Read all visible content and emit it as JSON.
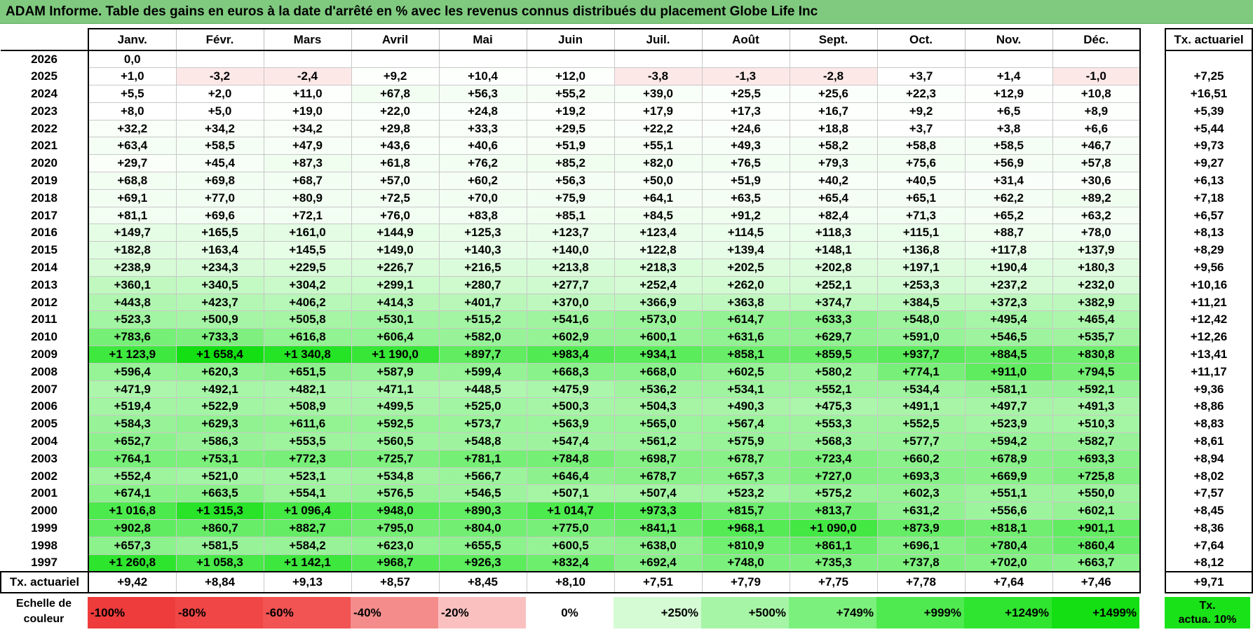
{
  "title": "ADAM Informe. Table des gains en euros à la date d'arrêté en % avec les revenus connus distribués du placement Globe Life Inc",
  "months": [
    "Janv.",
    "Févr.",
    "Mars",
    "Avril",
    "Mai",
    "Juin",
    "Juil.",
    "Août",
    "Sept.",
    "Oct.",
    "Nov.",
    "Déc."
  ],
  "actu_header": "Tx. actuariel",
  "rows": [
    {
      "year": "2026",
      "values": [
        "0,0",
        "",
        "",
        "",
        "",
        "",
        "",
        "",
        "",
        "",
        "",
        ""
      ],
      "actu": ""
    },
    {
      "year": "2025",
      "values": [
        "+1,0",
        "-3,2",
        "-2,4",
        "+9,2",
        "+10,4",
        "+12,0",
        "-3,8",
        "-1,3",
        "-2,8",
        "+3,7",
        "+1,4",
        "-1,0"
      ],
      "actu": "+7,25"
    },
    {
      "year": "2024",
      "values": [
        "+5,5",
        "+2,0",
        "+11,0",
        "+67,8",
        "+56,3",
        "+55,2",
        "+39,0",
        "+25,5",
        "+25,6",
        "+22,3",
        "+12,9",
        "+10,8"
      ],
      "actu": "+16,51"
    },
    {
      "year": "2023",
      "values": [
        "+8,0",
        "+5,0",
        "+19,0",
        "+22,0",
        "+24,8",
        "+19,2",
        "+17,9",
        "+17,3",
        "+16,7",
        "+9,2",
        "+6,5",
        "+8,9"
      ],
      "actu": "+5,39"
    },
    {
      "year": "2022",
      "values": [
        "+32,2",
        "+34,2",
        "+34,2",
        "+29,8",
        "+33,3",
        "+29,5",
        "+22,2",
        "+24,6",
        "+18,8",
        "+3,7",
        "+3,8",
        "+6,6"
      ],
      "actu": "+5,44"
    },
    {
      "year": "2021",
      "values": [
        "+63,4",
        "+58,5",
        "+47,9",
        "+43,6",
        "+40,6",
        "+51,9",
        "+55,1",
        "+49,3",
        "+58,2",
        "+58,8",
        "+58,5",
        "+46,7"
      ],
      "actu": "+9,73"
    },
    {
      "year": "2020",
      "values": [
        "+29,7",
        "+45,4",
        "+87,3",
        "+61,8",
        "+76,2",
        "+85,2",
        "+82,0",
        "+76,5",
        "+79,3",
        "+75,6",
        "+56,9",
        "+57,8"
      ],
      "actu": "+9,27"
    },
    {
      "year": "2019",
      "values": [
        "+68,8",
        "+69,8",
        "+68,7",
        "+57,0",
        "+60,2",
        "+56,3",
        "+50,0",
        "+51,9",
        "+40,2",
        "+40,5",
        "+31,4",
        "+30,6"
      ],
      "actu": "+6,13"
    },
    {
      "year": "2018",
      "values": [
        "+69,1",
        "+77,0",
        "+80,9",
        "+72,5",
        "+70,0",
        "+75,9",
        "+64,1",
        "+63,5",
        "+65,4",
        "+65,1",
        "+62,2",
        "+89,2"
      ],
      "actu": "+7,18"
    },
    {
      "year": "2017",
      "values": [
        "+81,1",
        "+69,6",
        "+72,1",
        "+76,0",
        "+83,8",
        "+85,1",
        "+84,5",
        "+91,2",
        "+82,4",
        "+71,3",
        "+65,2",
        "+63,2"
      ],
      "actu": "+6,57"
    },
    {
      "year": "2016",
      "values": [
        "+149,7",
        "+165,5",
        "+161,0",
        "+144,9",
        "+125,3",
        "+123,7",
        "+123,4",
        "+114,5",
        "+118,3",
        "+115,1",
        "+88,7",
        "+78,0"
      ],
      "actu": "+8,13"
    },
    {
      "year": "2015",
      "values": [
        "+182,8",
        "+163,4",
        "+145,5",
        "+149,0",
        "+140,3",
        "+140,0",
        "+122,8",
        "+139,4",
        "+148,1",
        "+136,8",
        "+117,8",
        "+137,9"
      ],
      "actu": "+8,29"
    },
    {
      "year": "2014",
      "values": [
        "+238,9",
        "+234,3",
        "+229,5",
        "+226,7",
        "+216,5",
        "+213,8",
        "+218,3",
        "+202,5",
        "+202,8",
        "+197,1",
        "+190,4",
        "+180,3"
      ],
      "actu": "+9,56"
    },
    {
      "year": "2013",
      "values": [
        "+360,1",
        "+340,5",
        "+304,2",
        "+299,1",
        "+280,7",
        "+277,7",
        "+252,4",
        "+262,0",
        "+252,1",
        "+253,3",
        "+237,2",
        "+232,0"
      ],
      "actu": "+10,16"
    },
    {
      "year": "2012",
      "values": [
        "+443,8",
        "+423,7",
        "+406,2",
        "+414,3",
        "+401,7",
        "+370,0",
        "+366,9",
        "+363,8",
        "+374,7",
        "+384,5",
        "+372,3",
        "+382,9"
      ],
      "actu": "+11,21"
    },
    {
      "year": "2011",
      "values": [
        "+523,3",
        "+500,9",
        "+505,8",
        "+530,1",
        "+515,2",
        "+541,6",
        "+573,0",
        "+614,7",
        "+633,3",
        "+548,0",
        "+495,4",
        "+465,4"
      ],
      "actu": "+12,42"
    },
    {
      "year": "2010",
      "values": [
        "+783,6",
        "+733,3",
        "+616,8",
        "+606,4",
        "+582,0",
        "+602,9",
        "+600,1",
        "+631,6",
        "+629,7",
        "+591,0",
        "+546,5",
        "+535,7"
      ],
      "actu": "+12,26"
    },
    {
      "year": "2009",
      "values": [
        "+1 123,9",
        "+1 658,4",
        "+1 340,8",
        "+1 190,0",
        "+897,7",
        "+983,4",
        "+934,1",
        "+858,1",
        "+859,5",
        "+937,7",
        "+884,5",
        "+830,8"
      ],
      "actu": "+13,41"
    },
    {
      "year": "2008",
      "values": [
        "+596,4",
        "+620,3",
        "+651,5",
        "+587,9",
        "+599,4",
        "+668,3",
        "+668,0",
        "+602,5",
        "+580,2",
        "+774,1",
        "+911,0",
        "+794,5"
      ],
      "actu": "+11,17"
    },
    {
      "year": "2007",
      "values": [
        "+471,9",
        "+492,1",
        "+482,1",
        "+471,1",
        "+448,5",
        "+475,9",
        "+536,2",
        "+534,1",
        "+552,1",
        "+534,4",
        "+581,1",
        "+592,1"
      ],
      "actu": "+9,36"
    },
    {
      "year": "2006",
      "values": [
        "+519,4",
        "+522,9",
        "+508,9",
        "+499,5",
        "+525,0",
        "+500,3",
        "+504,3",
        "+490,3",
        "+475,3",
        "+491,1",
        "+497,7",
        "+491,3"
      ],
      "actu": "+8,86"
    },
    {
      "year": "2005",
      "values": [
        "+584,3",
        "+629,3",
        "+611,6",
        "+592,5",
        "+573,7",
        "+563,9",
        "+565,0",
        "+567,4",
        "+553,3",
        "+552,5",
        "+523,9",
        "+510,3"
      ],
      "actu": "+8,83"
    },
    {
      "year": "2004",
      "values": [
        "+652,7",
        "+586,3",
        "+553,5",
        "+560,5",
        "+548,8",
        "+547,4",
        "+561,2",
        "+575,9",
        "+568,3",
        "+577,7",
        "+594,2",
        "+582,7"
      ],
      "actu": "+8,61"
    },
    {
      "year": "2003",
      "values": [
        "+764,1",
        "+753,1",
        "+772,3",
        "+725,7",
        "+781,1",
        "+784,8",
        "+698,7",
        "+678,7",
        "+723,4",
        "+660,2",
        "+678,9",
        "+693,3"
      ],
      "actu": "+8,94"
    },
    {
      "year": "2002",
      "values": [
        "+552,4",
        "+521,0",
        "+523,1",
        "+534,8",
        "+566,7",
        "+646,4",
        "+678,7",
        "+657,3",
        "+727,0",
        "+693,3",
        "+669,9",
        "+725,8"
      ],
      "actu": "+8,02"
    },
    {
      "year": "2001",
      "values": [
        "+674,1",
        "+663,5",
        "+554,1",
        "+576,5",
        "+546,5",
        "+507,1",
        "+507,4",
        "+523,2",
        "+575,2",
        "+602,3",
        "+551,1",
        "+550,0"
      ],
      "actu": "+7,57"
    },
    {
      "year": "2000",
      "values": [
        "+1 016,8",
        "+1 315,3",
        "+1 096,4",
        "+948,0",
        "+890,3",
        "+1 014,7",
        "+973,3",
        "+815,7",
        "+813,7",
        "+631,2",
        "+556,6",
        "+602,1"
      ],
      "actu": "+8,45"
    },
    {
      "year": "1999",
      "values": [
        "+902,8",
        "+860,7",
        "+882,7",
        "+795,0",
        "+804,0",
        "+775,0",
        "+841,1",
        "+968,1",
        "+1 090,0",
        "+873,9",
        "+818,1",
        "+901,1"
      ],
      "actu": "+8,36"
    },
    {
      "year": "1998",
      "values": [
        "+657,3",
        "+581,5",
        "+584,2",
        "+623,0",
        "+655,5",
        "+600,5",
        "+638,0",
        "+810,9",
        "+861,1",
        "+696,1",
        "+780,4",
        "+860,4"
      ],
      "actu": "+7,64"
    },
    {
      "year": "1997",
      "values": [
        "+1 260,8",
        "+1 058,3",
        "+1 142,1",
        "+968,7",
        "+926,3",
        "+832,4",
        "+692,4",
        "+748,0",
        "+735,3",
        "+737,8",
        "+702,0",
        "+663,7"
      ],
      "actu": "+8,12"
    }
  ],
  "footer": {
    "label": "Tx. actuariel",
    "values": [
      "+9,42",
      "+8,84",
      "+9,13",
      "+8,57",
      "+8,45",
      "+8,10",
      "+7,51",
      "+7,79",
      "+7,75",
      "+7,78",
      "+7,64",
      "+7,46"
    ],
    "actu": "+9,71"
  },
  "scale": {
    "label_line1": "Echelle de",
    "label_line2": "couleur",
    "items": [
      {
        "text": "-100%",
        "color": "#ee3b3b",
        "align": "l"
      },
      {
        "text": "-80%",
        "color": "#f04646",
        "align": "l"
      },
      {
        "text": "-60%",
        "color": "#f25353",
        "align": "l"
      },
      {
        "text": "-40%",
        "color": "#f58c8c",
        "align": "l"
      },
      {
        "text": "-20%",
        "color": "#fac0c0",
        "align": "l"
      },
      {
        "text": "0%",
        "color": "#ffffff",
        "align": "c"
      },
      {
        "text": "+250%",
        "color": "#d4fbd4",
        "align": "r"
      },
      {
        "text": "+500%",
        "color": "#a6f5a6",
        "align": "r"
      },
      {
        "text": "+749%",
        "color": "#7cf07c",
        "align": "r"
      },
      {
        "text": "+999%",
        "color": "#4fea4f",
        "align": "r"
      },
      {
        "text": "+1249%",
        "color": "#2fe52f",
        "align": "r"
      },
      {
        "text": "+1499%",
        "color": "#13df13",
        "align": "r"
      }
    ],
    "target_line1": "Tx.",
    "target_line2": "actua. 10%"
  },
  "colors": {
    "title_bg": "#7fca7f",
    "negative_bg": "#fde8e8",
    "target_bg": "#19e219"
  }
}
